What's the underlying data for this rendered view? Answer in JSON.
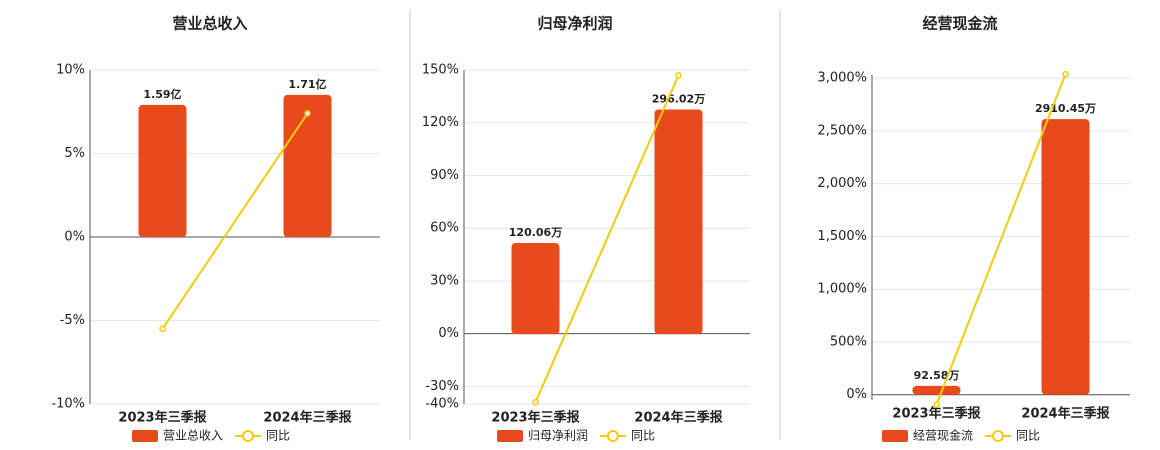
{
  "chart_data": [
    {
      "type": "combo",
      "title": "营业总收入",
      "categories": [
        "2023年三季报",
        "2024年三季报"
      ],
      "series": [
        {
          "name": "营业总收入",
          "color": "#e84a1b",
          "type": "bar",
          "axis": "y2",
          "values": [
            1.59,
            1.71
          ],
          "value_labels": [
            "1.59亿",
            "1.71亿"
          ]
        },
        {
          "name": "同比",
          "color": "#f2cc0c",
          "type": "line",
          "values": [
            -5.5,
            7.4
          ]
        }
      ],
      "ylim": [
        -10,
        10
      ],
      "yticks": [
        {
          "value": -10,
          "label": "-10%"
        },
        {
          "value": -5,
          "label": "-5%"
        },
        {
          "value": 0,
          "label": "0%"
        },
        {
          "value": 5,
          "label": "5%"
        },
        {
          "value": 10,
          "label": "10%"
        }
      ],
      "y2lim": [
        -2.01,
        2.01
      ],
      "grid": true
    },
    {
      "type": "combo",
      "title": "归母净利润",
      "categories": [
        "2023年三季报",
        "2024年三季报"
      ],
      "series": [
        {
          "name": "归母净利润",
          "color": "#e84a1b",
          "type": "bar",
          "axis": "y2",
          "values": [
            120.06,
            296.02
          ],
          "value_labels": [
            "120.06万",
            "296.02万"
          ]
        },
        {
          "name": "同比",
          "color": "#f2cc0c",
          "type": "line",
          "values": [
            -39,
            147
          ]
        }
      ],
      "ylim": [
        -40,
        150
      ],
      "yticks": [
        {
          "value": -40,
          "label": "-40%"
        },
        {
          "value": -30,
          "label": "-30%"
        },
        {
          "value": 0,
          "label": "0%"
        },
        {
          "value": 30,
          "label": "30%"
        },
        {
          "value": 60,
          "label": "60%"
        },
        {
          "value": 90,
          "label": "90%"
        },
        {
          "value": 120,
          "label": "120%"
        },
        {
          "value": 150,
          "label": "150%"
        }
      ],
      "y2lim": [
        -92,
        348
      ],
      "grid": true
    },
    {
      "type": "combo",
      "title": "经营现金流",
      "categories": [
        "2023年三季报",
        "2024年三季报"
      ],
      "series": [
        {
          "name": "经营现金流",
          "color": "#e84a1b",
          "type": "bar",
          "axis": "y2",
          "values": [
            92.58,
            2910.45
          ],
          "value_labels": [
            "92.58万",
            "2910.45万"
          ]
        },
        {
          "name": "同比",
          "color": "#f2cc0c",
          "type": "line",
          "values": [
            -94,
            3038
          ]
        }
      ],
      "ylim": [
        -50,
        3030
      ],
      "yticks": [
        {
          "value": 0,
          "label": "0%"
        },
        {
          "value": 500,
          "label": "500%"
        },
        {
          "value": 1000,
          "label": "1,000%"
        },
        {
          "value": 1500,
          "label": "1,500%"
        },
        {
          "value": 2000,
          "label": "2,000%"
        },
        {
          "value": 2500,
          "label": "2,500%"
        },
        {
          "value": 3000,
          "label": "3,000%"
        }
      ],
      "y2lim": [
        -56,
        3376
      ],
      "grid": true
    }
  ]
}
